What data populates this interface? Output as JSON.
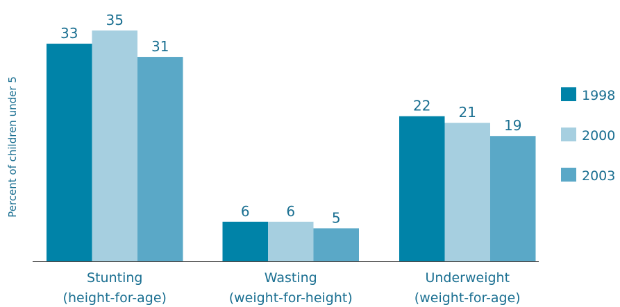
{
  "chart_data": {
    "type": "bar",
    "ylabel": "Percent of children under 5",
    "categories": [
      [
        "Stunting",
        "(height-for-age)"
      ],
      [
        "Wasting",
        "(weight-for-height)"
      ],
      [
        "Underweight",
        "(weight-for-age)"
      ]
    ],
    "series": [
      {
        "name": "1998",
        "values": [
          33,
          6,
          22
        ],
        "color": "#0083a8"
      },
      {
        "name": "2000",
        "values": [
          35,
          6,
          21
        ],
        "color": "#a6cfe0"
      },
      {
        "name": "2003",
        "values": [
          31,
          5,
          19
        ],
        "color": "#5aa8c7"
      }
    ],
    "ylim": [
      0,
      35
    ],
    "grid": false,
    "legend": "right",
    "colors": {
      "text": "#1a6f91",
      "axis": "#4a4a4a"
    }
  }
}
